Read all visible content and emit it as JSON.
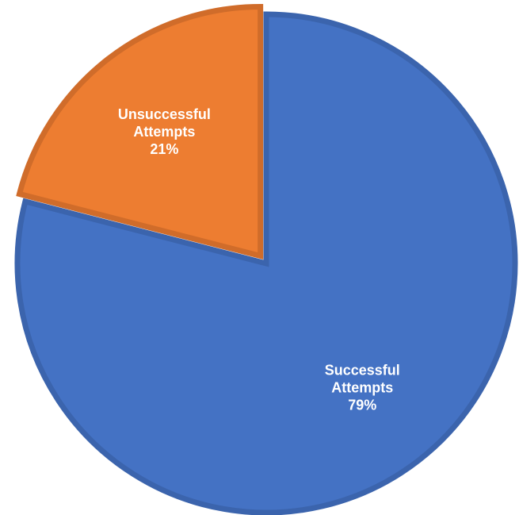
{
  "chart_data": {
    "type": "pie",
    "title": "",
    "start_angle_deg": 0,
    "direction": "clockwise",
    "slices": [
      {
        "category_lines": [
          "Successful",
          "Attempts"
        ],
        "value": 79,
        "percent_label": "79%",
        "color": "#4472C4",
        "border_color": "#3B64AD"
      },
      {
        "category_lines": [
          "Unsuccessful",
          "Attempts"
        ],
        "value": 21,
        "percent_label": "21%",
        "color": "#ED7D31",
        "border_color": "#D06C2A"
      }
    ]
  }
}
